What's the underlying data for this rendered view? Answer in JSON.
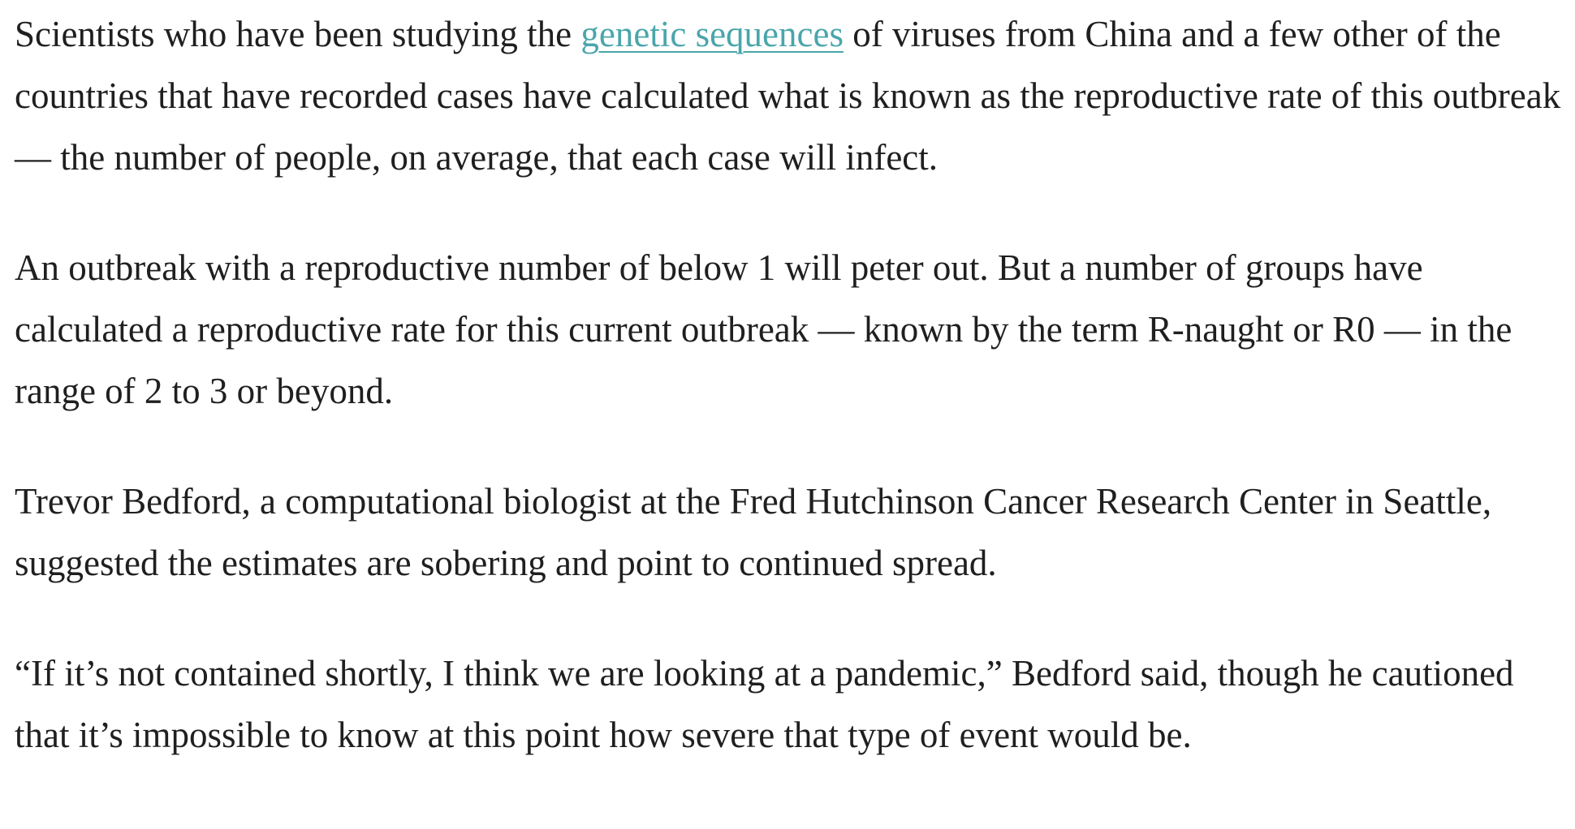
{
  "article": {
    "p1": {
      "before": "Scientists who have been studying the ",
      "link_text": "genetic sequences",
      "after": " of viruses from China and a few other of the countries that have recorded cases have calculated what is known as the reproductive rate of this outbreak — the number of people, on average, that each case will infect."
    },
    "p2": "An outbreak with a reproductive number of below 1 will peter out. But a number of groups have calculated a reproductive rate for this current outbreak — known by the term R-naught or R0 — in the range of 2 to 3 or beyond.",
    "p3": "Trevor Bedford, a computational biologist at the Fred Hutchinson Cancer Research Center in Seattle, suggested the estimates are sobering and point to continued spread.",
    "p4": "“If it’s not contained shortly, I think we are looking at a pandemic,” Bedford said, though he cautioned that it’s impossible to know at this point how severe that type of event would be."
  },
  "colors": {
    "text": "#1f1f1f",
    "link": "#4aa6ab",
    "background": "#ffffff"
  }
}
